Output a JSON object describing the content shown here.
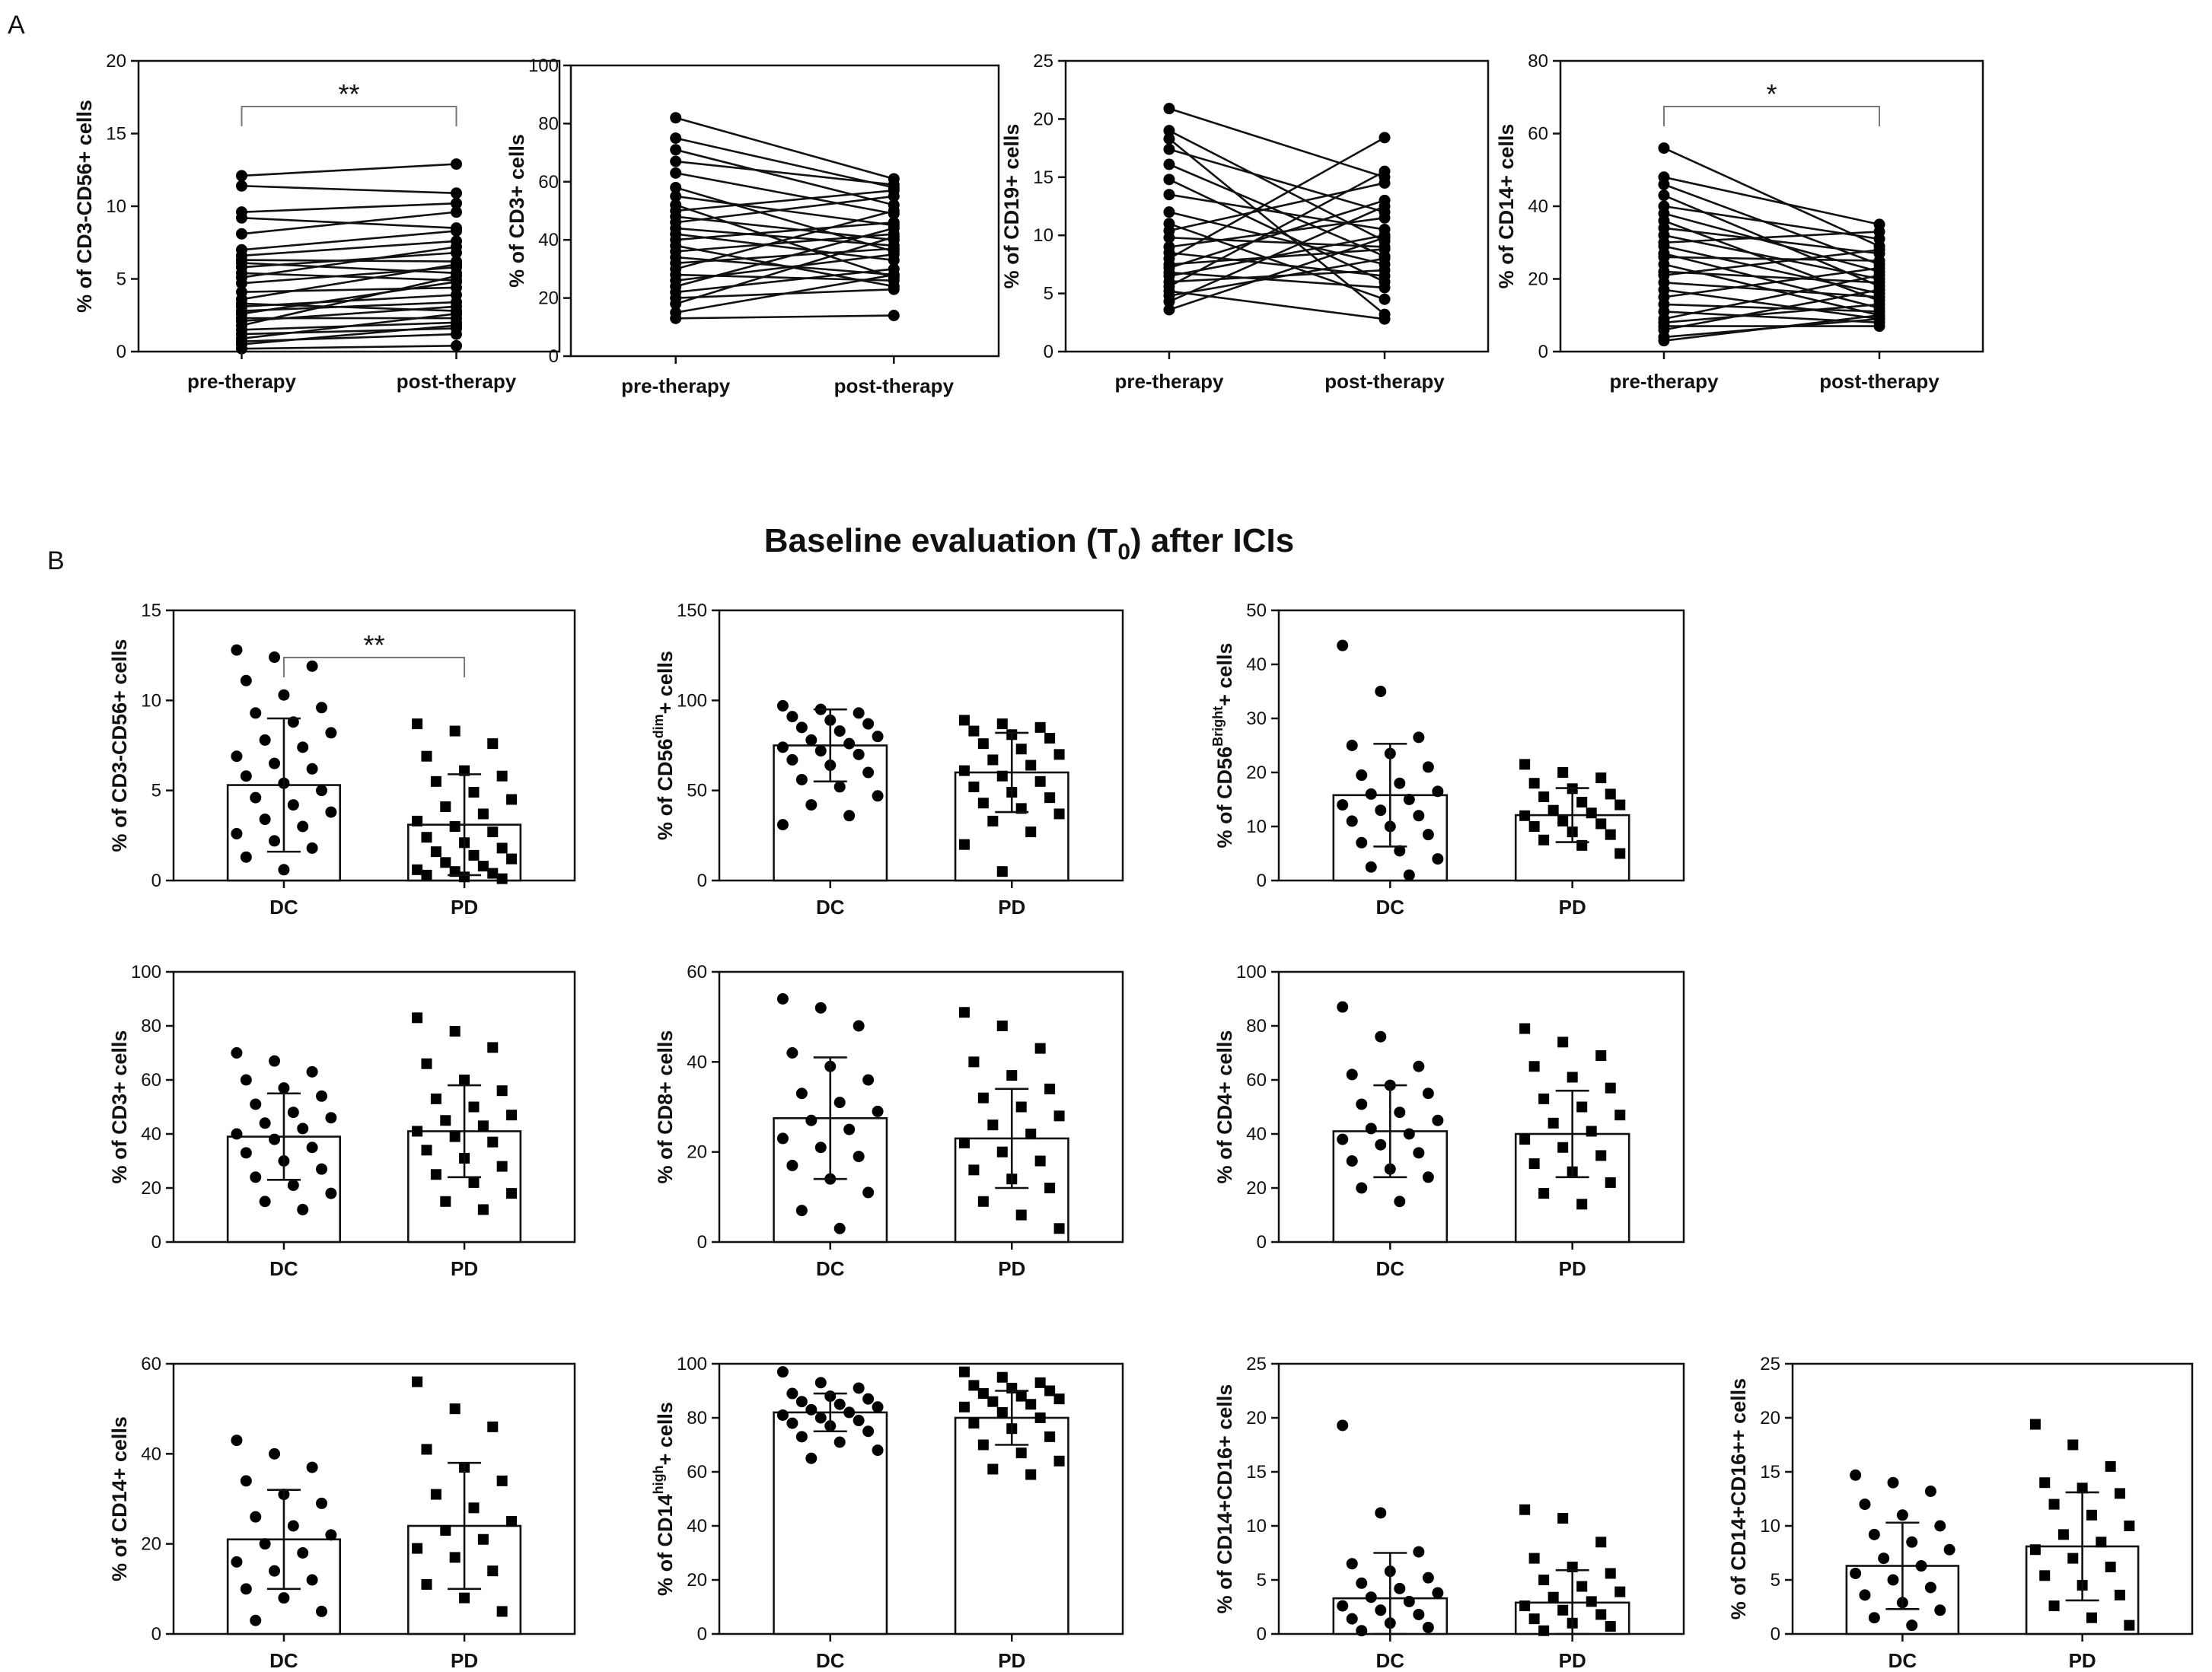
{
  "figure": {
    "panel_a_label": "A",
    "panel_b_label": "B",
    "panel_b_title": "Baseline evaluation (T",
    "panel_b_title_sub": "0",
    "panel_b_title_end": ") after ICIs"
  },
  "colors": {
    "ink": "#111111",
    "bar_fill": "#ffffff",
    "marker": "#000000",
    "background": "#ffffff"
  },
  "chart_data": [
    {
      "id": "A1",
      "type": "scatter",
      "subtype": "paired",
      "ylabel": "% of CD3-CD56+ cells",
      "ylim": [
        0,
        20
      ],
      "yticks": [
        0,
        5,
        10,
        15,
        20
      ],
      "categories": [
        "pre-therapy",
        "post-therapy"
      ],
      "significance": "**",
      "pairs": [
        [
          12.1,
          12.9
        ],
        [
          11.4,
          10.9
        ],
        [
          9.6,
          10.2
        ],
        [
          9.2,
          8.5
        ],
        [
          8.1,
          9.6
        ],
        [
          7.0,
          8.3
        ],
        [
          6.6,
          7.6
        ],
        [
          6.3,
          6.2
        ],
        [
          6.1,
          5.4
        ],
        [
          5.8,
          6.8
        ],
        [
          5.4,
          4.9
        ],
        [
          5.1,
          7.2
        ],
        [
          4.7,
          5.8
        ],
        [
          4.1,
          4.4
        ],
        [
          3.6,
          6.0
        ],
        [
          3.3,
          2.8
        ],
        [
          3.1,
          3.9
        ],
        [
          2.8,
          3.4
        ],
        [
          2.6,
          4.8
        ],
        [
          2.3,
          2.3
        ],
        [
          2.1,
          3.1
        ],
        [
          1.8,
          5.2
        ],
        [
          1.5,
          2.0
        ],
        [
          1.2,
          1.6
        ],
        [
          0.9,
          2.6
        ],
        [
          0.7,
          1.2
        ],
        [
          0.5,
          1.8
        ],
        [
          0.2,
          0.4
        ]
      ]
    },
    {
      "id": "A2",
      "type": "scatter",
      "subtype": "paired",
      "ylabel": "% of CD3+ cells",
      "ylim": [
        0,
        100
      ],
      "yticks": [
        0,
        20,
        40,
        60,
        80,
        100
      ],
      "categories": [
        "pre-therapy",
        "post-therapy"
      ],
      "significance": "",
      "pairs": [
        [
          82,
          61
        ],
        [
          75,
          58
        ],
        [
          71,
          52
        ],
        [
          67,
          59
        ],
        [
          63,
          49
        ],
        [
          58,
          36
        ],
        [
          55,
          45
        ],
        [
          52,
          27
        ],
        [
          50,
          57
        ],
        [
          48,
          40
        ],
        [
          46,
          55
        ],
        [
          44,
          38
        ],
        [
          42,
          33
        ],
        [
          40,
          46
        ],
        [
          38,
          24
        ],
        [
          36,
          42
        ],
        [
          34,
          28
        ],
        [
          32,
          37
        ],
        [
          30,
          50
        ],
        [
          28,
          26
        ],
        [
          26,
          35
        ],
        [
          24,
          44
        ],
        [
          22,
          30
        ],
        [
          20,
          23
        ],
        [
          18,
          41
        ],
        [
          15,
          28
        ],
        [
          13,
          14
        ]
      ]
    },
    {
      "id": "A3",
      "type": "scatter",
      "subtype": "paired",
      "ylabel": "% of CD19+ cells",
      "ylim": [
        0,
        25
      ],
      "yticks": [
        0,
        5,
        10,
        15,
        20,
        25
      ],
      "categories": [
        "pre-therapy",
        "post-therapy"
      ],
      "significance": "",
      "pairs": [
        [
          20.9,
          15.0
        ],
        [
          19.0,
          9.5
        ],
        [
          18.3,
          3.2
        ],
        [
          17.4,
          12.0
        ],
        [
          16.1,
          8.2
        ],
        [
          14.8,
          6.0
        ],
        [
          13.5,
          10.5
        ],
        [
          12.0,
          7.5
        ],
        [
          11.0,
          4.5
        ],
        [
          10.4,
          14.5
        ],
        [
          9.8,
          9.0
        ],
        [
          9.0,
          11.5
        ],
        [
          8.5,
          6.5
        ],
        [
          8.0,
          18.4
        ],
        [
          7.5,
          8.8
        ],
        [
          7.2,
          13.0
        ],
        [
          6.8,
          5.5
        ],
        [
          6.5,
          10.0
        ],
        [
          6.0,
          7.0
        ],
        [
          5.6,
          15.5
        ],
        [
          5.2,
          2.8
        ],
        [
          4.8,
          8.0
        ],
        [
          4.3,
          12.5
        ],
        [
          3.6,
          9.8
        ]
      ]
    },
    {
      "id": "A4",
      "type": "scatter",
      "subtype": "paired",
      "ylabel": "% of CD14+ cells",
      "ylim": [
        0,
        80
      ],
      "yticks": [
        0,
        20,
        40,
        60,
        80
      ],
      "categories": [
        "pre-therapy",
        "post-therapy"
      ],
      "significance": "*",
      "pairs": [
        [
          56,
          29
        ],
        [
          48,
          35
        ],
        [
          46,
          24
        ],
        [
          43,
          18
        ],
        [
          40,
          31
        ],
        [
          38,
          22
        ],
        [
          36,
          14
        ],
        [
          34,
          27
        ],
        [
          32,
          20
        ],
        [
          30,
          33
        ],
        [
          29,
          16
        ],
        [
          27,
          12
        ],
        [
          26,
          25
        ],
        [
          24,
          10
        ],
        [
          22,
          19
        ],
        [
          21,
          28
        ],
        [
          19,
          15
        ],
        [
          17,
          9
        ],
        [
          15,
          23
        ],
        [
          13,
          11
        ],
        [
          11,
          8
        ],
        [
          9,
          21
        ],
        [
          8,
          13
        ],
        [
          7,
          7
        ],
        [
          6,
          17
        ],
        [
          4,
          9
        ],
        [
          3,
          10
        ]
      ]
    },
    {
      "id": "B1",
      "type": "bar",
      "subtype": "bar-with-points",
      "ylabel": "% of CD3-CD56+ cells",
      "ylim": [
        0,
        15
      ],
      "yticks": [
        0,
        5,
        10,
        15
      ],
      "categories": [
        "DC",
        "PD"
      ],
      "significance": "**",
      "means": [
        5.3,
        3.1
      ],
      "sd": [
        3.7,
        2.8
      ],
      "points": [
        [
          12.8,
          12.4,
          11.9,
          11.1,
          10.3,
          9.6,
          9.3,
          8.8,
          8.2,
          7.8,
          7.4,
          6.9,
          6.5,
          6.2,
          5.8,
          5.4,
          5.0,
          4.6,
          4.2,
          3.8,
          3.4,
          3.0,
          2.6,
          2.2,
          1.8,
          1.3,
          0.6
        ],
        [
          8.7,
          8.3,
          7.6,
          6.9,
          6.1,
          5.8,
          5.5,
          4.9,
          4.5,
          4.1,
          3.7,
          3.3,
          3.0,
          2.7,
          2.4,
          2.1,
          1.8,
          1.6,
          1.4,
          1.2,
          1.0,
          0.8,
          0.6,
          0.5,
          0.4,
          0.3,
          0.2,
          0.1
        ]
      ]
    },
    {
      "id": "B2",
      "type": "bar",
      "subtype": "bar-with-points",
      "ylabel": "% of CD56dim+ cells",
      "ylabel_parts": [
        "% of CD56",
        "dim",
        "+ cells"
      ],
      "ylim": [
        0,
        150
      ],
      "yticks": [
        0,
        50,
        100,
        150
      ],
      "categories": [
        "DC",
        "PD"
      ],
      "significance": "",
      "means": [
        75,
        60
      ],
      "sd": [
        20,
        22
      ],
      "points": [
        [
          97,
          95,
          93,
          91,
          89,
          87,
          85,
          83,
          80,
          78,
          76,
          74,
          72,
          70,
          67,
          64,
          60,
          56,
          52,
          47,
          42,
          36,
          31
        ],
        [
          89,
          87,
          85,
          83,
          81,
          79,
          76,
          73,
          70,
          67,
          64,
          61,
          58,
          55,
          52,
          49,
          46,
          43,
          40,
          37,
          33,
          27,
          20,
          5
        ]
      ]
    },
    {
      "id": "B3",
      "type": "bar",
      "subtype": "bar-with-points",
      "ylabel": "% of CD56Bright+ cells",
      "ylabel_parts": [
        "% of CD56",
        "Bright",
        "+ cells"
      ],
      "ylim": [
        0,
        50
      ],
      "yticks": [
        0,
        10,
        20,
        30,
        40,
        50
      ],
      "categories": [
        "DC",
        "PD"
      ],
      "significance": "",
      "means": [
        15.8,
        12.1
      ],
      "sd": [
        9.5,
        5.0
      ],
      "points": [
        [
          43.5,
          35.0,
          26.5,
          25.0,
          23.5,
          21.0,
          19.5,
          18.0,
          16.5,
          16.0,
          15.0,
          14.0,
          13.0,
          12.0,
          11.0,
          10.0,
          8.5,
          7.0,
          5.5,
          4.0,
          2.5,
          1.0
        ],
        [
          21.5,
          20.0,
          19.0,
          18.0,
          17.0,
          16.0,
          15.5,
          14.5,
          14.0,
          13.0,
          12.5,
          12.0,
          11.0,
          10.5,
          10.0,
          9.0,
          8.5,
          7.5,
          6.5,
          5.0
        ]
      ]
    },
    {
      "id": "B4",
      "type": "bar",
      "subtype": "bar-with-points",
      "ylabel": "% of CD3+ cells",
      "ylim": [
        0,
        100
      ],
      "yticks": [
        0,
        20,
        40,
        60,
        80,
        100
      ],
      "categories": [
        "DC",
        "PD"
      ],
      "significance": "",
      "means": [
        39,
        41
      ],
      "sd": [
        16,
        17
      ],
      "points": [
        [
          70,
          67,
          63,
          60,
          57,
          54,
          51,
          48,
          46,
          44,
          42,
          40,
          38,
          35,
          33,
          30,
          27,
          24,
          21,
          18,
          15,
          12
        ],
        [
          83,
          78,
          72,
          66,
          60,
          56,
          53,
          50,
          47,
          45,
          43,
          41,
          39,
          37,
          34,
          31,
          28,
          25,
          22,
          18,
          15,
          12
        ]
      ]
    },
    {
      "id": "B5",
      "type": "bar",
      "subtype": "bar-with-points",
      "ylabel": "% of CD8+ cells",
      "ylim": [
        0,
        60
      ],
      "yticks": [
        0,
        20,
        40,
        60
      ],
      "categories": [
        "DC",
        "PD"
      ],
      "significance": "",
      "means": [
        27.5,
        23
      ],
      "sd": [
        13.5,
        11
      ],
      "points": [
        [
          54,
          52,
          48,
          42,
          39,
          36,
          33,
          31,
          29,
          27,
          25,
          23,
          21,
          19,
          17,
          14,
          11,
          7,
          3
        ],
        [
          51,
          48,
          43,
          40,
          37,
          34,
          32,
          30,
          28,
          26,
          24,
          22,
          20,
          18,
          16,
          14,
          12,
          9,
          6,
          3
        ]
      ]
    },
    {
      "id": "B6",
      "type": "bar",
      "subtype": "bar-with-points",
      "ylabel": "% of CD4+ cells",
      "ylim": [
        0,
        100
      ],
      "yticks": [
        0,
        20,
        40,
        60,
        80,
        100
      ],
      "categories": [
        "DC",
        "PD"
      ],
      "significance": "",
      "means": [
        41,
        40
      ],
      "sd": [
        17,
        16
      ],
      "points": [
        [
          87,
          76,
          65,
          62,
          58,
          55,
          51,
          48,
          45,
          42,
          40,
          38,
          36,
          33,
          30,
          27,
          24,
          20,
          15
        ],
        [
          79,
          74,
          69,
          65,
          61,
          57,
          53,
          50,
          47,
          44,
          41,
          38,
          35,
          32,
          29,
          26,
          22,
          18,
          14
        ]
      ]
    },
    {
      "id": "B7",
      "type": "bar",
      "subtype": "bar-with-points",
      "ylabel": "% of CD14+ cells",
      "ylim": [
        0,
        60
      ],
      "yticks": [
        0,
        20,
        40,
        60
      ],
      "categories": [
        "DC",
        "PD"
      ],
      "significance": "",
      "means": [
        21,
        24
      ],
      "sd": [
        11,
        14
      ],
      "points": [
        [
          43,
          40,
          37,
          34,
          31,
          29,
          26,
          24,
          22,
          20,
          18,
          16,
          14,
          12,
          10,
          8,
          5,
          3
        ],
        [
          56,
          50,
          46,
          41,
          37,
          34,
          31,
          28,
          25,
          23,
          21,
          19,
          17,
          14,
          11,
          8,
          5
        ]
      ]
    },
    {
      "id": "B8",
      "type": "bar",
      "subtype": "bar-with-points",
      "ylabel": "% of CD14high+ cells",
      "ylabel_parts": [
        "% of CD14",
        "high",
        "+ cells"
      ],
      "ylim": [
        0,
        100
      ],
      "yticks": [
        0,
        20,
        40,
        60,
        80,
        100
      ],
      "categories": [
        "DC",
        "PD"
      ],
      "significance": "",
      "means": [
        82,
        80
      ],
      "sd": [
        7,
        10
      ],
      "points": [
        [
          97,
          93,
          91,
          89,
          88,
          87,
          86,
          85,
          84,
          83,
          82,
          81,
          80,
          79,
          78,
          77,
          75,
          73,
          71,
          68,
          65
        ],
        [
          97,
          95,
          93,
          92,
          91,
          90,
          89,
          88,
          87,
          86,
          85,
          84,
          82,
          80,
          78,
          76,
          73,
          70,
          67,
          64,
          61,
          59
        ]
      ]
    },
    {
      "id": "B9",
      "type": "bar",
      "subtype": "bar-with-points",
      "ylabel": "% of CD14+CD16+ cells",
      "ylim": [
        0,
        25
      ],
      "yticks": [
        0,
        5,
        10,
        15,
        20,
        25
      ],
      "categories": [
        "DC",
        "PD"
      ],
      "significance": "",
      "means": [
        3.3,
        2.9
      ],
      "sd": [
        4.2,
        3.0
      ],
      "points": [
        [
          19.3,
          11.2,
          7.6,
          6.5,
          5.8,
          5.2,
          4.7,
          4.2,
          3.8,
          3.4,
          3.0,
          2.6,
          2.2,
          1.8,
          1.4,
          1.0,
          0.6,
          0.3
        ],
        [
          11.5,
          10.7,
          8.5,
          7.0,
          6.2,
          5.6,
          5.0,
          4.4,
          3.9,
          3.4,
          3.0,
          2.6,
          2.2,
          1.8,
          1.4,
          1.0,
          0.7,
          0.3
        ]
      ]
    },
    {
      "id": "B10",
      "type": "bar",
      "subtype": "bar-with-points",
      "ylabel": "% of CD14+CD16++ cells",
      "ylim": [
        0,
        25
      ],
      "yticks": [
        0,
        5,
        10,
        15,
        20,
        25
      ],
      "categories": [
        "DC",
        "PD"
      ],
      "significance": "",
      "means": [
        6.3,
        8.1
      ],
      "sd": [
        4.0,
        5.0
      ],
      "points": [
        [
          14.7,
          14.0,
          13.2,
          12.0,
          11.0,
          10.0,
          9.2,
          8.5,
          7.8,
          7.0,
          6.3,
          5.6,
          5.0,
          4.3,
          3.6,
          2.9,
          2.2,
          1.5,
          0.8
        ],
        [
          19.4,
          17.5,
          15.5,
          14.0,
          13.5,
          13.0,
          12.0,
          11.0,
          10.0,
          9.2,
          8.5,
          7.8,
          7.0,
          6.2,
          5.4,
          4.5,
          3.6,
          2.6,
          1.5,
          0.8
        ]
      ]
    }
  ]
}
